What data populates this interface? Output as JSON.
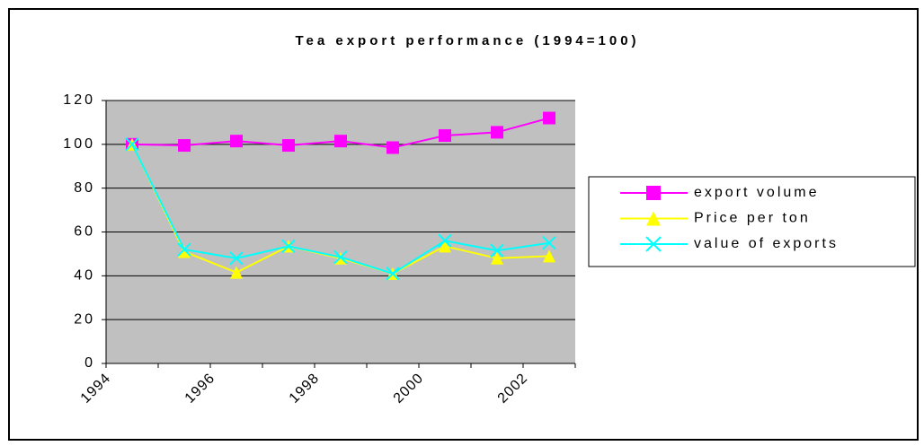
{
  "chart_data": {
    "type": "line",
    "title": "Tea export performance (1994=100)",
    "categories": [
      "1994",
      null,
      "1996",
      null,
      "1998",
      null,
      "2000",
      null,
      "2002"
    ],
    "series": [
      {
        "name": "export volume",
        "color": "#ff00ff",
        "marker": "square",
        "values": [
          100,
          99.5,
          101.5,
          99.5,
          101.5,
          98.5,
          104,
          105.5,
          112
        ]
      },
      {
        "name": "Price per ton",
        "color": "#ffff00",
        "marker": "triangle",
        "values": [
          100,
          51,
          41.5,
          53.5,
          48,
          41,
          53.5,
          48,
          49
        ]
      },
      {
        "name": "value of exports",
        "color": "#00ffff",
        "marker": "x",
        "values": [
          100,
          52,
          48,
          53.5,
          48.5,
          41,
          56,
          51.5,
          55
        ]
      }
    ],
    "ylim": [
      0,
      120
    ],
    "yticks": [
      0,
      20,
      40,
      60,
      80,
      100,
      120
    ],
    "grid": true,
    "legend": "right"
  }
}
